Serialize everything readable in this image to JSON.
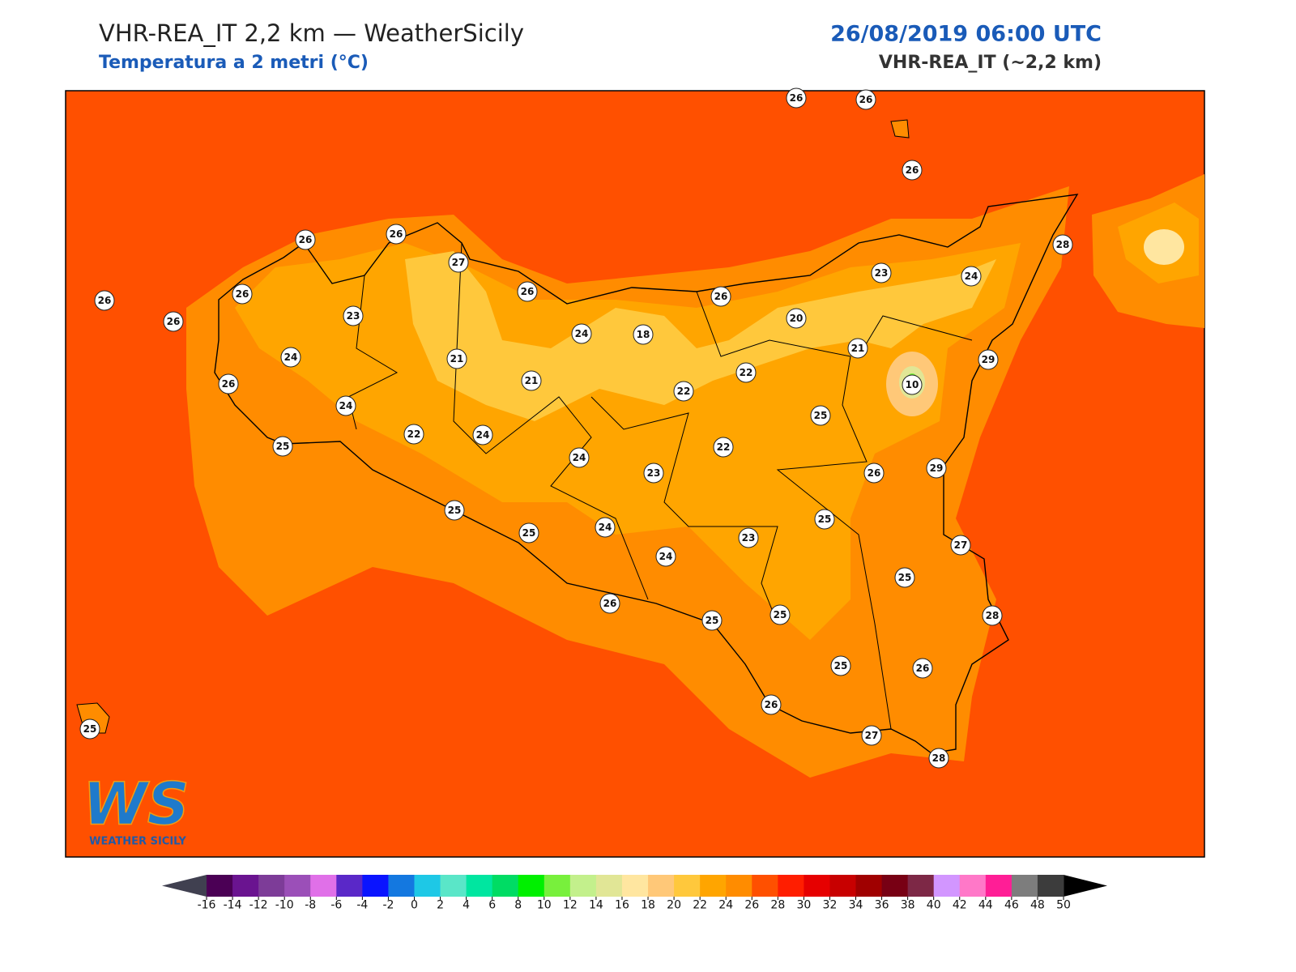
{
  "header": {
    "title": "VHR-REA_IT 2,2 km — WeatherSicily",
    "subtitle": "Temperatura a 2 metri (°C)",
    "datetime": "26/08/2019 06:00 UTC",
    "model": "VHR-REA_IT (~2,2 km)"
  },
  "stations": [
    26,
    26,
    26,
    26,
    26,
    27,
    26,
    26,
    26,
    26,
    23,
    26,
    23,
    24,
    28,
    20,
    24,
    18,
    21,
    29,
    24,
    21,
    21,
    22,
    10,
    26,
    24,
    22,
    25,
    22,
    24,
    25,
    22,
    24,
    23,
    26,
    29,
    25,
    25,
    25,
    24,
    23,
    27,
    24,
    25,
    26,
    25,
    25,
    28,
    25,
    26,
    26,
    27,
    28,
    25
  ],
  "colorbar": {
    "ticks": [
      -16,
      -14,
      -12,
      -10,
      -8,
      -6,
      -4,
      -2,
      0,
      2,
      4,
      6,
      8,
      10,
      12,
      14,
      16,
      18,
      20,
      22,
      24,
      26,
      28,
      30,
      32,
      34,
      36,
      38,
      40,
      42,
      44,
      46,
      48,
      50
    ],
    "colors": [
      "#4b0055",
      "#6a1490",
      "#7d3c98",
      "#9b4fb8",
      "#e070e8",
      "#5a28c8",
      "#0a14ff",
      "#1478e0",
      "#1ec8e6",
      "#5ae6c8",
      "#00e6a0",
      "#00dc64",
      "#00f000",
      "#78f03c",
      "#c3f08c",
      "#e1e696",
      "#ffe6a0",
      "#ffc878",
      "#ffc83c",
      "#ffa500",
      "#ff8c00",
      "#ff5000",
      "#ff1e00",
      "#e60000",
      "#c80000",
      "#a00000",
      "#780014",
      "#7d2846",
      "#d296ff",
      "#ff78c8",
      "#ff1e96",
      "#7d7d7d",
      "#3c3c3c"
    ],
    "under_color": "#404050",
    "over_color": "#000000"
  },
  "logo": {
    "mark": "WS",
    "text": "WEATHER SICILY"
  }
}
